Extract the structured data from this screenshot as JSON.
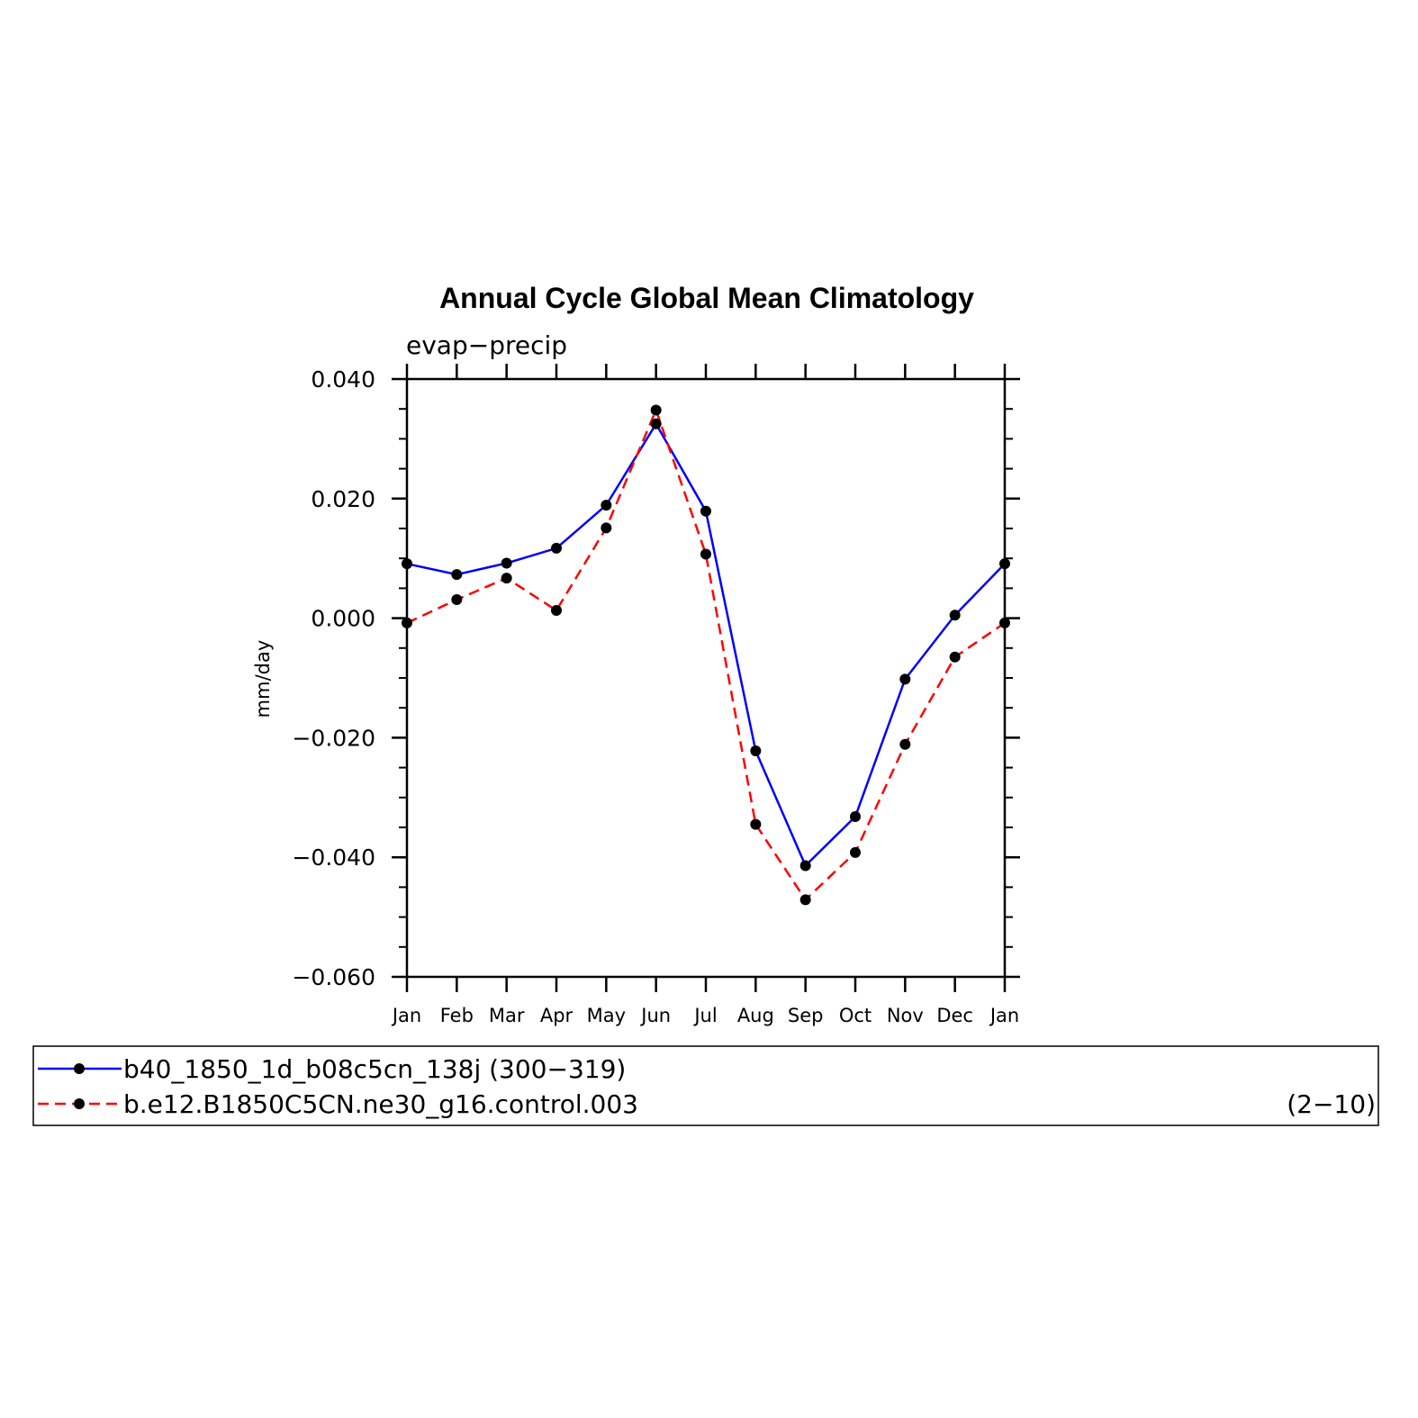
{
  "chart_data": {
    "type": "line",
    "title": "Annual Cycle Global Mean Climatology",
    "subtitle": "evap−precip",
    "xlabel": "",
    "ylabel": "mm/day",
    "ylim": [
      -0.06,
      0.04
    ],
    "yticks": [
      0.04,
      0.02,
      0.0,
      -0.02,
      -0.04,
      -0.06
    ],
    "ytick_labels": [
      "0.040",
      "0.020",
      "0.000",
      "−0.020",
      "−0.040",
      "−0.060"
    ],
    "categories": [
      "Jan",
      "Feb",
      "Mar",
      "Apr",
      "May",
      "Jun",
      "Jul",
      "Aug",
      "Sep",
      "Oct",
      "Nov",
      "Dec",
      "Jan"
    ],
    "grid": false,
    "legend_position": "bottom",
    "series": [
      {
        "name": "b40_1850_1d_b08c5cn_138j (300−319)",
        "color": "#0000ff",
        "dash": "solid",
        "values": [
          0.0091,
          0.0073,
          0.0092,
          0.0117,
          0.0189,
          0.0325,
          0.0179,
          -0.0222,
          -0.0414,
          -0.0332,
          -0.0102,
          0.0005,
          0.0091
        ]
      },
      {
        "name": "b.e12.B1850C5CN.ne30_g16.control.003",
        "name_suffix": "(2−10)",
        "color": "#ff0000",
        "dash": "dashed",
        "values": [
          -0.0008,
          0.0031,
          0.0067,
          0.0013,
          0.0151,
          0.0348,
          0.0107,
          -0.0345,
          -0.0471,
          -0.0392,
          -0.0211,
          -0.0065,
          -0.0008
        ]
      }
    ],
    "marker_color": "#000000"
  }
}
